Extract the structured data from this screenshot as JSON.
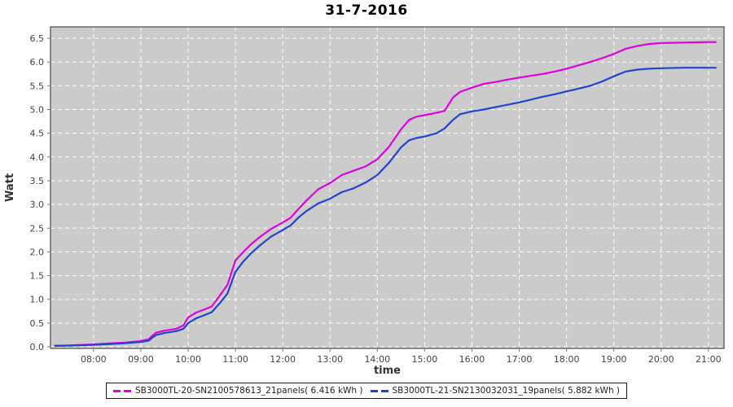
{
  "title": "31-7-2016",
  "colors": {
    "page_bg": "#FFFFFF",
    "plot_bg": "#CBCBCB",
    "grid": "#FFFFFF",
    "plot_border": "#545454",
    "tick": "#777777",
    "tick_label": "#444444",
    "axis_label": "#333333",
    "title": "#000000",
    "legend_border": "#1A1A1A",
    "series1": "#DD00DD",
    "series2": "#2244CC"
  },
  "legend": {
    "position": "bottom-center",
    "items": [
      {
        "label": "SB3000TL-20-SN2100578613_21panels( 6.416 kWh )",
        "color": "#DD00DD"
      },
      {
        "label": "SB3000TL-21-SN2130032031_19panels( 5.882 kWh )",
        "color": "#2244CC"
      }
    ]
  },
  "chart_data": {
    "type": "line",
    "title": "31-7-2016",
    "xlabel": "time",
    "ylabel": "Watt",
    "x_unit": "hour-of-day",
    "xlim": [
      7.09,
      21.33
    ],
    "ylim": [
      -0.034,
      6.741
    ],
    "grid": "white dashed gridlines on gray plot background, hourly vertical and 0.5-step horizontal",
    "legend_position": "bottom",
    "x_ticks": {
      "values": [
        8,
        9,
        10,
        11,
        12,
        13,
        14,
        15,
        16,
        17,
        18,
        19,
        20,
        21
      ],
      "labels": [
        "08:00",
        "09:00",
        "10:00",
        "11:00",
        "12:00",
        "13:00",
        "14:00",
        "15:00",
        "16:00",
        "17:00",
        "18:00",
        "19:00",
        "20:00",
        "21:00"
      ]
    },
    "y_ticks": {
      "values": [
        0,
        0.5,
        1,
        1.5,
        2,
        2.5,
        3,
        3.5,
        4,
        4.5,
        5,
        5.5,
        6,
        6.5
      ],
      "labels": [
        "0.0",
        "0.5",
        "1.0",
        "1.5",
        "2.0",
        "2.5",
        "3.0",
        "3.5",
        "4.0",
        "4.5",
        "5.0",
        "5.5",
        "6.0",
        "6.5"
      ]
    },
    "series": [
      {
        "name": "SB3000TL-20-SN2100578613_21panels( 6.416 kWh )",
        "color": "#DD00DD",
        "total_kwh": 6.416,
        "points": [
          [
            7.17,
            0.02
          ],
          [
            7.5,
            0.03
          ],
          [
            8.0,
            0.05
          ],
          [
            8.33,
            0.07
          ],
          [
            8.67,
            0.09
          ],
          [
            9.0,
            0.12
          ],
          [
            9.17,
            0.16
          ],
          [
            9.25,
            0.24
          ],
          [
            9.33,
            0.3
          ],
          [
            9.5,
            0.34
          ],
          [
            9.75,
            0.38
          ],
          [
            9.9,
            0.45
          ],
          [
            10.0,
            0.62
          ],
          [
            10.17,
            0.72
          ],
          [
            10.33,
            0.78
          ],
          [
            10.5,
            0.85
          ],
          [
            10.67,
            1.08
          ],
          [
            10.83,
            1.3
          ],
          [
            11.0,
            1.82
          ],
          [
            11.17,
            2.0
          ],
          [
            11.33,
            2.16
          ],
          [
            11.5,
            2.3
          ],
          [
            11.75,
            2.48
          ],
          [
            12.0,
            2.62
          ],
          [
            12.17,
            2.72
          ],
          [
            12.33,
            2.9
          ],
          [
            12.5,
            3.08
          ],
          [
            12.75,
            3.32
          ],
          [
            13.0,
            3.45
          ],
          [
            13.25,
            3.62
          ],
          [
            13.5,
            3.71
          ],
          [
            13.75,
            3.8
          ],
          [
            14.0,
            3.95
          ],
          [
            14.25,
            4.22
          ],
          [
            14.5,
            4.58
          ],
          [
            14.67,
            4.78
          ],
          [
            14.83,
            4.85
          ],
          [
            15.0,
            4.88
          ],
          [
            15.25,
            4.93
          ],
          [
            15.42,
            4.97
          ],
          [
            15.6,
            5.25
          ],
          [
            15.75,
            5.37
          ],
          [
            16.0,
            5.46
          ],
          [
            16.25,
            5.54
          ],
          [
            16.5,
            5.58
          ],
          [
            16.75,
            5.63
          ],
          [
            17.0,
            5.67
          ],
          [
            17.25,
            5.71
          ],
          [
            17.5,
            5.75
          ],
          [
            17.75,
            5.8
          ],
          [
            18.0,
            5.86
          ],
          [
            18.25,
            5.93
          ],
          [
            18.5,
            6.0
          ],
          [
            18.75,
            6.08
          ],
          [
            19.0,
            6.17
          ],
          [
            19.25,
            6.28
          ],
          [
            19.5,
            6.34
          ],
          [
            19.75,
            6.38
          ],
          [
            20.0,
            6.4
          ],
          [
            20.5,
            6.41
          ],
          [
            21.0,
            6.42
          ],
          [
            21.17,
            6.42
          ]
        ]
      },
      {
        "name": "SB3000TL-21-SN2130032031_19panels( 5.882 kWh )",
        "color": "#2244CC",
        "total_kwh": 5.882,
        "points": [
          [
            7.17,
            0.02
          ],
          [
            7.5,
            0.025
          ],
          [
            8.0,
            0.04
          ],
          [
            8.33,
            0.055
          ],
          [
            8.67,
            0.075
          ],
          [
            9.0,
            0.1
          ],
          [
            9.17,
            0.13
          ],
          [
            9.25,
            0.2
          ],
          [
            9.33,
            0.25
          ],
          [
            9.5,
            0.29
          ],
          [
            9.75,
            0.33
          ],
          [
            9.9,
            0.38
          ],
          [
            10.0,
            0.5
          ],
          [
            10.17,
            0.6
          ],
          [
            10.33,
            0.66
          ],
          [
            10.5,
            0.73
          ],
          [
            10.67,
            0.92
          ],
          [
            10.83,
            1.12
          ],
          [
            11.0,
            1.58
          ],
          [
            11.17,
            1.8
          ],
          [
            11.33,
            1.97
          ],
          [
            11.5,
            2.12
          ],
          [
            11.75,
            2.32
          ],
          [
            12.0,
            2.46
          ],
          [
            12.17,
            2.56
          ],
          [
            12.33,
            2.72
          ],
          [
            12.5,
            2.86
          ],
          [
            12.75,
            3.02
          ],
          [
            13.0,
            3.12
          ],
          [
            13.25,
            3.26
          ],
          [
            13.5,
            3.34
          ],
          [
            13.75,
            3.46
          ],
          [
            14.0,
            3.62
          ],
          [
            14.25,
            3.88
          ],
          [
            14.5,
            4.2
          ],
          [
            14.67,
            4.35
          ],
          [
            14.83,
            4.4
          ],
          [
            15.0,
            4.43
          ],
          [
            15.25,
            4.5
          ],
          [
            15.42,
            4.6
          ],
          [
            15.6,
            4.78
          ],
          [
            15.75,
            4.9
          ],
          [
            16.0,
            4.96
          ],
          [
            16.25,
            5.0
          ],
          [
            16.5,
            5.05
          ],
          [
            16.75,
            5.1
          ],
          [
            17.0,
            5.15
          ],
          [
            17.25,
            5.21
          ],
          [
            17.5,
            5.27
          ],
          [
            17.75,
            5.32
          ],
          [
            18.0,
            5.38
          ],
          [
            18.25,
            5.44
          ],
          [
            18.5,
            5.5
          ],
          [
            18.75,
            5.59
          ],
          [
            19.0,
            5.7
          ],
          [
            19.25,
            5.8
          ],
          [
            19.5,
            5.84
          ],
          [
            19.75,
            5.86
          ],
          [
            20.0,
            5.87
          ],
          [
            20.5,
            5.88
          ],
          [
            21.0,
            5.88
          ],
          [
            21.17,
            5.88
          ]
        ]
      }
    ]
  }
}
